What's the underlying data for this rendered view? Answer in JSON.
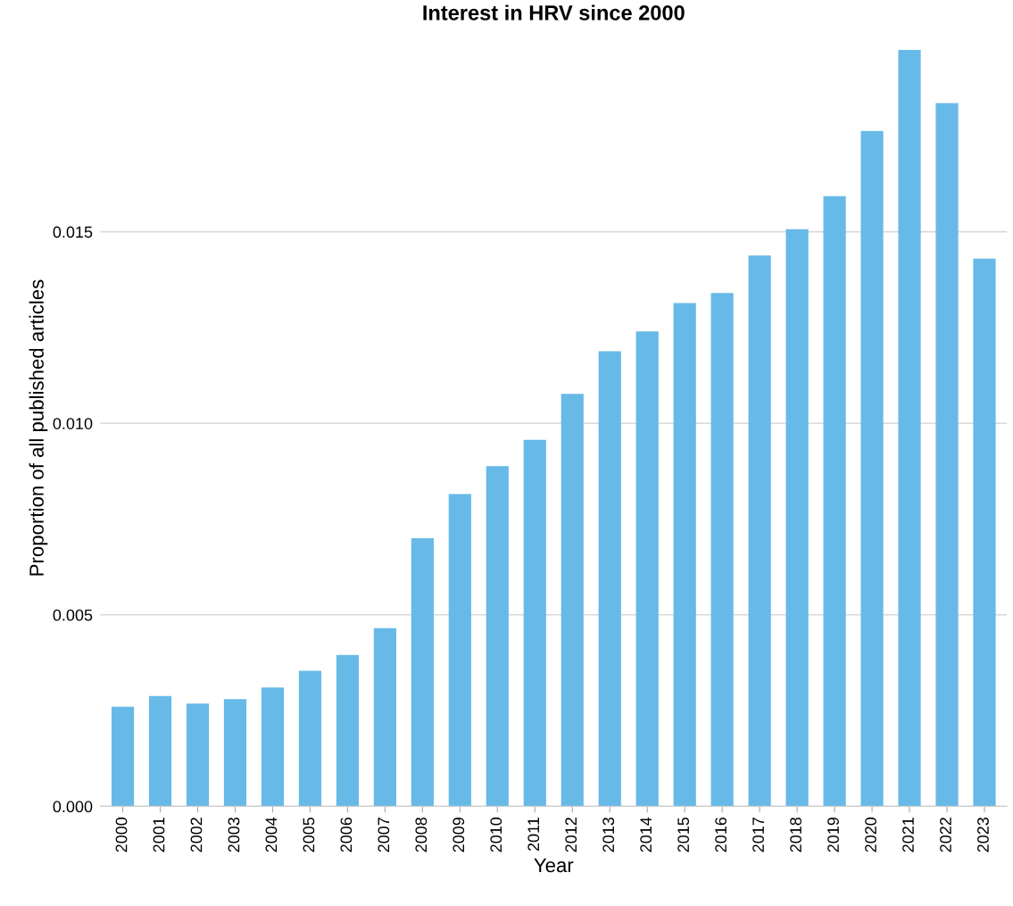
{
  "chart_data": {
    "type": "bar",
    "title": "Interest in HRV since 2000",
    "xlabel": "Year",
    "ylabel": "Proportion of all published articles",
    "categories": [
      "2000",
      "2001",
      "2002",
      "2003",
      "2004",
      "2005",
      "2006",
      "2007",
      "2008",
      "2009",
      "2010",
      "2011",
      "2012",
      "2013",
      "2014",
      "2015",
      "2016",
      "2017",
      "2018",
      "2019",
      "2020",
      "2021",
      "2022",
      "2023"
    ],
    "values": [
      0.0026,
      0.00288,
      0.00268,
      0.0028,
      0.0031,
      0.00354,
      0.00395,
      0.00465,
      0.007,
      0.00815,
      0.00888,
      0.00957,
      0.01077,
      0.01188,
      0.0124,
      0.01314,
      0.0134,
      0.01438,
      0.01507,
      0.01593,
      0.01763,
      0.01975,
      0.01836,
      0.0143
    ],
    "color": "#67b9e8",
    "ylim": [
      0,
      0.01975
    ],
    "yticks": [
      {
        "value": 0,
        "label": "0.000"
      },
      {
        "value": 0.005,
        "label": "0.005"
      },
      {
        "value": 0.01,
        "label": "0.010"
      },
      {
        "value": 0.015,
        "label": "0.015"
      }
    ],
    "grid": "y",
    "legend": false
  }
}
